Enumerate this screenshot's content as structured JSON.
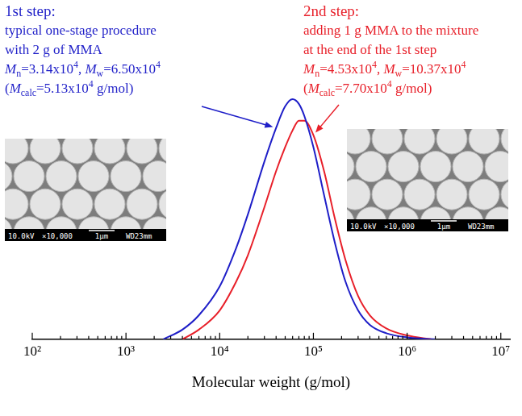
{
  "chart_data": {
    "type": "line",
    "x_label": "Molecular weight (g/mol)",
    "log": "x",
    "grid": false,
    "tick_labels": "x",
    "xlim": [
      100,
      12500000
    ],
    "xticks": [
      {
        "value": 100,
        "label": "10²"
      },
      {
        "value": 1000,
        "label": "10³"
      },
      {
        "value": 10000,
        "label": "10⁴"
      },
      {
        "value": 100000,
        "label": "10⁵"
      },
      {
        "value": 1000000,
        "label": "10⁶"
      },
      {
        "value": 10000000,
        "label": "10⁷"
      }
    ],
    "ylim": [
      0,
      1.05
    ],
    "series": [
      {
        "color": "#1f1fc8",
        "x": [
          2500,
          4000,
          6000,
          10000,
          15000,
          20000,
          30000,
          40000,
          50000,
          60000,
          70000,
          80000,
          100000,
          130000,
          170000,
          220000,
          300000,
          400000,
          600000,
          1000000,
          2000000
        ],
        "values": [
          0,
          0.04,
          0.1,
          0.22,
          0.38,
          0.52,
          0.74,
          0.88,
          0.97,
          1.0,
          0.98,
          0.93,
          0.8,
          0.6,
          0.4,
          0.24,
          0.12,
          0.06,
          0.025,
          0.008,
          0
        ]
      },
      {
        "color": "#e8202a",
        "x": [
          4000,
          6000,
          10000,
          15000,
          20000,
          30000,
          40000,
          50000,
          60000,
          70000,
          80000,
          100000,
          130000,
          170000,
          220000,
          300000,
          400000,
          600000,
          1000000,
          1800000
        ],
        "values": [
          0,
          0.04,
          0.12,
          0.24,
          0.35,
          0.55,
          0.7,
          0.8,
          0.87,
          0.91,
          0.91,
          0.85,
          0.7,
          0.5,
          0.33,
          0.18,
          0.1,
          0.045,
          0.016,
          0
        ]
      }
    ],
    "annotations": [
      {
        "color": "#1f1fc8",
        "lines": [
          [
            {
              "text": "1st step:"
            }
          ],
          [
            {
              "text": "typical one-stage procedure"
            }
          ],
          [
            {
              "text": "with 2 g of MMA"
            }
          ],
          [
            {
              "text": "M",
              "style": "italic"
            },
            {
              "text": "n",
              "style": "sub"
            },
            {
              "text": "=3.14x10"
            },
            {
              "text": "4",
              "style": "sup"
            },
            {
              "text": ", "
            },
            {
              "text": "M",
              "style": "italic"
            },
            {
              "text": "w",
              "style": "sub"
            },
            {
              "text": "=6.50x10"
            },
            {
              "text": "4",
              "style": "sup"
            }
          ],
          [
            {
              "text": "("
            },
            {
              "text": "M",
              "style": "italic"
            },
            {
              "text": "calc",
              "style": "sub"
            },
            {
              "text": "=5.13x10"
            },
            {
              "text": "4",
              "style": "sup"
            },
            {
              "text": " g/mol)"
            }
          ]
        ]
      },
      {
        "color": "#e8202a",
        "lines": [
          [
            {
              "text": "2nd step:"
            }
          ],
          [
            {
              "text": "adding 1 g MMA to the mixture"
            }
          ],
          [
            {
              "text": "at the end of the 1st step"
            }
          ],
          [
            {
              "text": "M",
              "style": "italic"
            },
            {
              "text": "n",
              "style": "sub"
            },
            {
              "text": "=4.53x10"
            },
            {
              "text": "4",
              "style": "sup"
            },
            {
              "text": ", "
            },
            {
              "text": "M",
              "style": "italic"
            },
            {
              "text": "w",
              "style": "sub"
            },
            {
              "text": "=10.37x10"
            },
            {
              "text": "4",
              "style": "sup"
            }
          ],
          [
            {
              "text": "("
            },
            {
              "text": "M",
              "style": "italic"
            },
            {
              "text": "calc",
              "style": "sub"
            },
            {
              "text": "=7.70x10"
            },
            {
              "text": "4",
              "style": "sup"
            },
            {
              "text": " g/mol)"
            }
          ]
        ]
      }
    ],
    "images": [
      {
        "labels": [
          "10.0kV",
          "×10,000",
          "1μm",
          "WD23mm"
        ]
      },
      {
        "labels": [
          "10.0kV",
          "×10,000",
          "1μm",
          "WD23mm"
        ]
      }
    ]
  }
}
